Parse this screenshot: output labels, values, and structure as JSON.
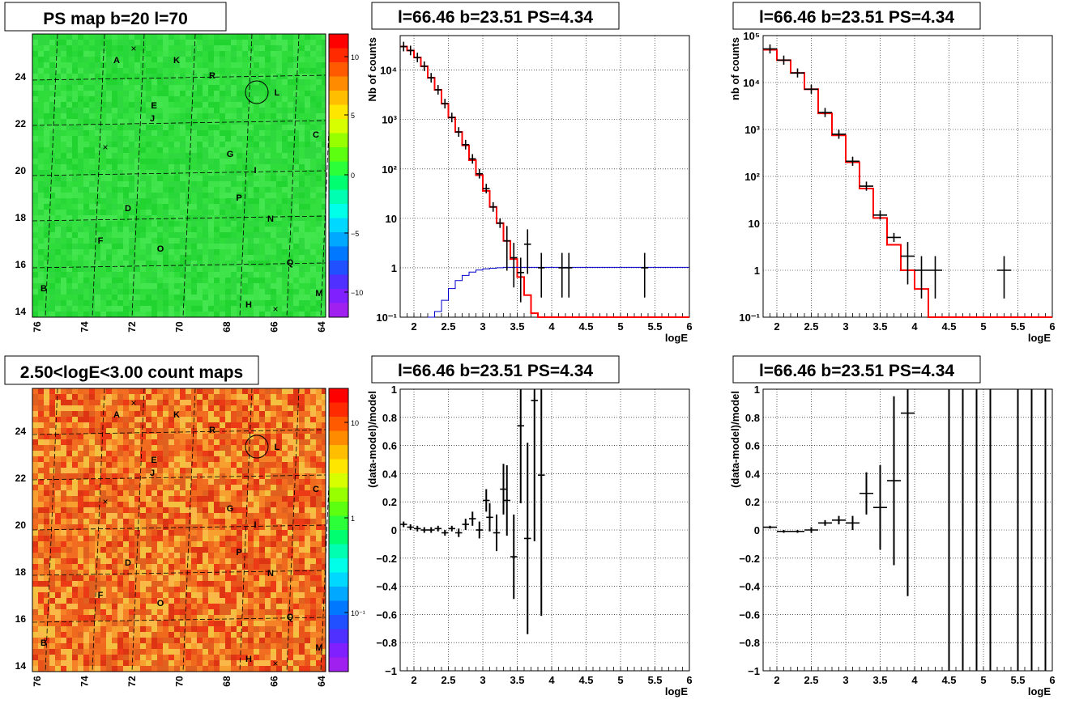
{
  "panels": {
    "map1": {
      "title": "PS map b=20 l=70",
      "y_ticks": [
        "24",
        "22",
        "20",
        "18",
        "16",
        "14"
      ],
      "x_ticks": [
        "76",
        "74",
        "72",
        "70",
        "68",
        "66",
        "64"
      ],
      "colorbar": {
        "ticks": [
          "10",
          "5",
          "0",
          "−5",
          "−10"
        ],
        "scale": "linear",
        "range": [
          -12,
          12
        ]
      },
      "labels": [
        "A",
        "K",
        "R",
        "L",
        "E",
        "J",
        "C",
        "G",
        "I",
        "D",
        "P",
        "N",
        "F",
        "O",
        "Q",
        "B",
        "H",
        "M"
      ],
      "fill_color": "#2edc3a"
    },
    "map2": {
      "title": "2.50<logE<3.00 count maps",
      "y_ticks": [
        "24",
        "22",
        "20",
        "18",
        "16",
        "14"
      ],
      "x_ticks": [
        "76",
        "74",
        "72",
        "70",
        "68",
        "66",
        "64"
      ],
      "colorbar": {
        "ticks": [
          "10",
          "1",
          "10⁻¹"
        ],
        "scale": "log"
      },
      "labels": [
        "A",
        "K",
        "R",
        "L",
        "E",
        "J",
        "C",
        "G",
        "I",
        "D",
        "P",
        "N",
        "F",
        "O",
        "Q",
        "B",
        "H",
        "M"
      ],
      "fill_color": "#f06a1e"
    }
  },
  "chart_data": [
    {
      "id": "c1",
      "type": "line",
      "title": "l=66.46 b=23.51 PS=4.34",
      "xlabel": "logE",
      "ylabel": "Nb of counts",
      "xlim": [
        1.8,
        6
      ],
      "ylim": [
        0.1,
        50000
      ],
      "yscale": "log",
      "grid": true,
      "x_ticks": [
        "2",
        "2.5",
        "3",
        "3.5",
        "4",
        "4.5",
        "5",
        "5.5",
        "6"
      ],
      "y_ticks": [
        "10⁴",
        "10³",
        "10²",
        "10",
        "1",
        "10⁻¹"
      ],
      "series": [
        {
          "color": "#ff0000",
          "step_edges": [
            1.8,
            1.9,
            2.0,
            2.1,
            2.2,
            2.3,
            2.4,
            2.5,
            2.6,
            2.7,
            2.8,
            2.9,
            3.0,
            3.1,
            3.2,
            3.3,
            3.4,
            3.5,
            3.6,
            3.7,
            3.8,
            3.9,
            4.0,
            4.1,
            4.2,
            6.0
          ],
          "values": [
            30000,
            25000,
            18000,
            12000,
            7000,
            4000,
            2100,
            1100,
            560,
            300,
            150,
            75,
            36,
            17,
            8,
            3.5,
            1.5,
            0.65,
            0.28,
            0.12,
            0.1,
            0.1,
            0.1,
            0.1,
            0.1
          ]
        },
        {
          "color": "#0000cc",
          "step_edges": [
            2.2,
            2.3,
            2.4,
            2.5,
            2.6,
            2.7,
            2.8,
            2.9,
            3.0,
            3.1,
            3.2,
            3.3,
            6.0
          ],
          "values": [
            0.1,
            0.13,
            0.22,
            0.38,
            0.55,
            0.7,
            0.82,
            0.9,
            0.95,
            0.98,
            1.0,
            1.02
          ]
        },
        {
          "color": "#000000",
          "points": [
            [
              1.85,
              30000,
              0.05
            ],
            [
              1.95,
              25000,
              0.05
            ],
            [
              2.05,
              18000,
              0.05
            ],
            [
              2.15,
              12000,
              0.05
            ],
            [
              2.25,
              7000,
              0.05
            ],
            [
              2.35,
              4000,
              0.05
            ],
            [
              2.45,
              2100,
              0.05
            ],
            [
              2.55,
              1100,
              0.05
            ],
            [
              2.65,
              560,
              0.05
            ],
            [
              2.75,
              310,
              0.05
            ],
            [
              2.85,
              160,
              0.05
            ],
            [
              2.95,
              80,
              0.05
            ],
            [
              3.05,
              40,
              0.05
            ],
            [
              3.15,
              17,
              0.05
            ],
            [
              3.25,
              8,
              0.05
            ],
            [
              3.35,
              3.5,
              0.05
            ],
            [
              3.45,
              1.6,
              0.05
            ],
            [
              3.55,
              0.8,
              0.05
            ],
            [
              3.65,
              3,
              0.05
            ],
            [
              3.85,
              1,
              0.05
            ],
            [
              4.15,
              1,
              0.05
            ],
            [
              4.25,
              1,
              0.05
            ],
            [
              5.35,
              1,
              0.05
            ]
          ]
        }
      ]
    },
    {
      "id": "c2",
      "type": "line",
      "title": "l=66.46 b=23.51 PS=4.34",
      "xlabel": "logE",
      "ylabel": "nb of counts",
      "xlim": [
        1.8,
        6
      ],
      "ylim": [
        0.1,
        100000
      ],
      "yscale": "log",
      "grid": true,
      "x_ticks": [
        "2",
        "2.5",
        "3",
        "3.5",
        "4",
        "4.5",
        "5",
        "5.5",
        "6"
      ],
      "y_ticks": [
        "10⁵",
        "10⁴",
        "10³",
        "10²",
        "10",
        "1",
        "10⁻¹"
      ],
      "series": [
        {
          "color": "#ff0000",
          "step_edges": [
            1.8,
            2.0,
            2.2,
            2.4,
            2.6,
            2.8,
            3.0,
            3.2,
            3.4,
            3.6,
            3.8,
            4.0,
            4.2,
            6.0
          ],
          "values": [
            50000,
            30000,
            16000,
            7200,
            2200,
            750,
            200,
            55,
            13,
            3.5,
            1.0,
            0.4,
            0.1
          ]
        },
        {
          "color": "#000000",
          "points": [
            [
              1.9,
              52000,
              0.1
            ],
            [
              2.1,
              30000,
              0.1
            ],
            [
              2.3,
              16000,
              0.1
            ],
            [
              2.5,
              7200,
              0.1
            ],
            [
              2.7,
              2300,
              0.1
            ],
            [
              2.9,
              790,
              0.1
            ],
            [
              3.1,
              210,
              0.1
            ],
            [
              3.3,
              62,
              0.1
            ],
            [
              3.5,
              15,
              0.1
            ],
            [
              3.7,
              5,
              0.1
            ],
            [
              3.9,
              2,
              0.1
            ],
            [
              4.1,
              1,
              0.1
            ],
            [
              4.3,
              1,
              0.1
            ],
            [
              5.3,
              1,
              0.1
            ]
          ]
        }
      ]
    },
    {
      "id": "c3",
      "type": "scatter",
      "title": "l=66.46 b=23.51 PS=4.34",
      "xlabel": "logE",
      "ylabel": "(data-model)/model",
      "xlim": [
        1.8,
        6
      ],
      "ylim": [
        -1,
        1
      ],
      "grid": true,
      "x_ticks": [
        "2",
        "2.5",
        "3",
        "3.5",
        "4",
        "4.5",
        "5",
        "5.5",
        "6"
      ],
      "y_ticks": [
        "1",
        "0.8",
        "0.6",
        "0.4",
        "0.2",
        "0",
        "−0.2",
        "−0.4",
        "−0.6",
        "−0.8",
        "−1"
      ],
      "points": [
        [
          1.85,
          0.04,
          0.05,
          0.02
        ],
        [
          1.95,
          0.02,
          0.05,
          0.02
        ],
        [
          2.05,
          0.01,
          0.05,
          0.02
        ],
        [
          2.15,
          0.0,
          0.05,
          0.02
        ],
        [
          2.25,
          0.0,
          0.05,
          0.02
        ],
        [
          2.35,
          0.01,
          0.05,
          0.02
        ],
        [
          2.45,
          -0.02,
          0.05,
          0.02
        ],
        [
          2.55,
          0.01,
          0.05,
          0.02
        ],
        [
          2.65,
          -0.02,
          0.05,
          0.03
        ],
        [
          2.75,
          0.04,
          0.05,
          0.04
        ],
        [
          2.85,
          0.08,
          0.05,
          0.05
        ],
        [
          2.95,
          0.0,
          0.05,
          0.06
        ],
        [
          3.05,
          0.21,
          0.05,
          0.08
        ],
        [
          3.1,
          0.09,
          0.05,
          0.1
        ],
        [
          3.2,
          -0.02,
          0.05,
          0.13
        ],
        [
          3.3,
          0.29,
          0.05,
          0.18
        ],
        [
          3.35,
          0.21,
          0.05,
          0.25
        ],
        [
          3.45,
          -0.19,
          0.05,
          0.3
        ],
        [
          3.55,
          0.74,
          0.05,
          0.55
        ],
        [
          3.65,
          -0.06,
          0.05,
          0.68
        ],
        [
          3.75,
          0.92,
          0.05,
          1.0
        ],
        [
          3.85,
          0.39,
          0.05,
          1.0
        ]
      ]
    },
    {
      "id": "c4",
      "type": "scatter",
      "title": "l=66.46 b=23.51 PS=4.34",
      "xlabel": "logE",
      "ylabel": "(data-model)/model",
      "xlim": [
        1.8,
        6
      ],
      "ylim": [
        -1,
        1
      ],
      "grid": true,
      "x_ticks": [
        "2",
        "2.5",
        "3",
        "3.5",
        "4",
        "4.5",
        "5",
        "5.5",
        "6"
      ],
      "y_ticks": [
        "1",
        "0.8",
        "0.6",
        "0.4",
        "0.2",
        "0",
        "−0.2",
        "−0.4",
        "−0.6",
        "−0.8",
        "−1"
      ],
      "points": [
        [
          1.9,
          0.02,
          0.1,
          0.01
        ],
        [
          2.1,
          -0.01,
          0.1,
          0.01
        ],
        [
          2.3,
          -0.01,
          0.1,
          0.01
        ],
        [
          2.5,
          0.0,
          0.1,
          0.02
        ],
        [
          2.7,
          0.05,
          0.1,
          0.02
        ],
        [
          2.9,
          0.07,
          0.1,
          0.03
        ],
        [
          3.1,
          0.05,
          0.1,
          0.05
        ],
        [
          3.3,
          0.26,
          0.1,
          0.15
        ],
        [
          3.5,
          0.16,
          0.1,
          0.3
        ],
        [
          3.7,
          0.35,
          0.1,
          0.6
        ],
        [
          3.9,
          0.83,
          0.1,
          1.3
        ],
        [
          4.5,
          2,
          0.0,
          3
        ],
        [
          4.7,
          2,
          0.0,
          3
        ],
        [
          4.9,
          2,
          0.0,
          3
        ],
        [
          5.1,
          2,
          0.0,
          3
        ],
        [
          5.5,
          2,
          0.0,
          3
        ],
        [
          5.7,
          2,
          0.0,
          3
        ],
        [
          5.9,
          2,
          0.0,
          3
        ]
      ]
    }
  ]
}
